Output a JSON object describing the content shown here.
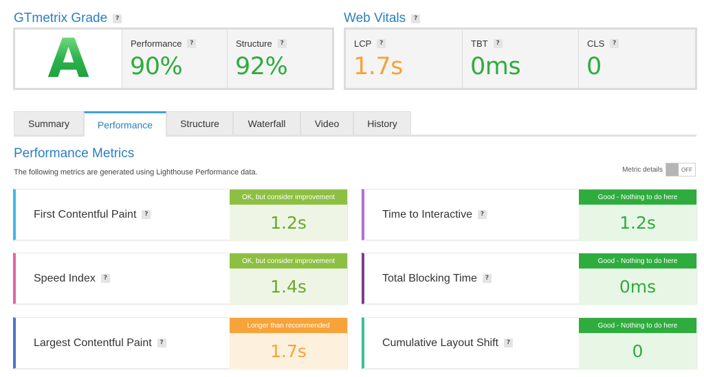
{
  "gtmetrix": {
    "title": "GTmetrix Grade",
    "grade": "A",
    "metrics": [
      {
        "label": "Performance",
        "value": "90%",
        "color": "#2fac3e"
      },
      {
        "label": "Structure",
        "value": "92%",
        "color": "#2fac3e"
      }
    ]
  },
  "web_vitals": {
    "title": "Web Vitals",
    "metrics": [
      {
        "label": "LCP",
        "value": "1.7s",
        "color": "#f6a33a"
      },
      {
        "label": "TBT",
        "value": "0ms",
        "color": "#2fac3e"
      },
      {
        "label": "CLS",
        "value": "0",
        "color": "#2fac3e"
      }
    ]
  },
  "help_glyph": "?",
  "tabs": [
    {
      "label": "Summary",
      "active": false
    },
    {
      "label": "Performance",
      "active": true
    },
    {
      "label": "Structure",
      "active": false
    },
    {
      "label": "Waterfall",
      "active": false
    },
    {
      "label": "Video",
      "active": false
    },
    {
      "label": "History",
      "active": false
    }
  ],
  "performance_metrics": {
    "title": "Performance Metrics",
    "description": "The following metrics are generated using Lighthouse Performance data.",
    "metric_details_label": "Metric details",
    "toggle_state": "OFF",
    "cards": [
      {
        "name": "First Contentful Paint",
        "status": "OK, but consider improvement",
        "value": "1.2s",
        "accent": "#3fb9e8",
        "badge_color": "#8dbf42",
        "value_bg": "#eef5e4",
        "value_color": "#6aa82f"
      },
      {
        "name": "Time to Interactive",
        "status": "Good - Nothing to do here",
        "value": "1.2s",
        "accent": "#b36fd0",
        "badge_color": "#2fac3e",
        "value_bg": "#e8f6e6",
        "value_color": "#2fac3e"
      },
      {
        "name": "Speed Index",
        "status": "OK, but consider improvement",
        "value": "1.4s",
        "accent": "#e466a4",
        "badge_color": "#8dbf42",
        "value_bg": "#eef5e4",
        "value_color": "#6aa82f"
      },
      {
        "name": "Total Blocking Time",
        "status": "Good - Nothing to do here",
        "value": "0ms",
        "accent": "#7b3f8f",
        "badge_color": "#2fac3e",
        "value_bg": "#e8f6e6",
        "value_color": "#2fac3e"
      },
      {
        "name": "Largest Contentful Paint",
        "status": "Longer than recommended",
        "value": "1.7s",
        "accent": "#4a74c8",
        "badge_color": "#f6a33a",
        "value_bg": "#fdf0dd",
        "value_color": "#f6a33a"
      },
      {
        "name": "Cumulative Layout Shift",
        "status": "Good - Nothing to do here",
        "value": "0",
        "accent": "#3dbf96",
        "badge_color": "#2fac3e",
        "value_bg": "#e8f6e6",
        "value_color": "#2fac3e"
      }
    ]
  }
}
